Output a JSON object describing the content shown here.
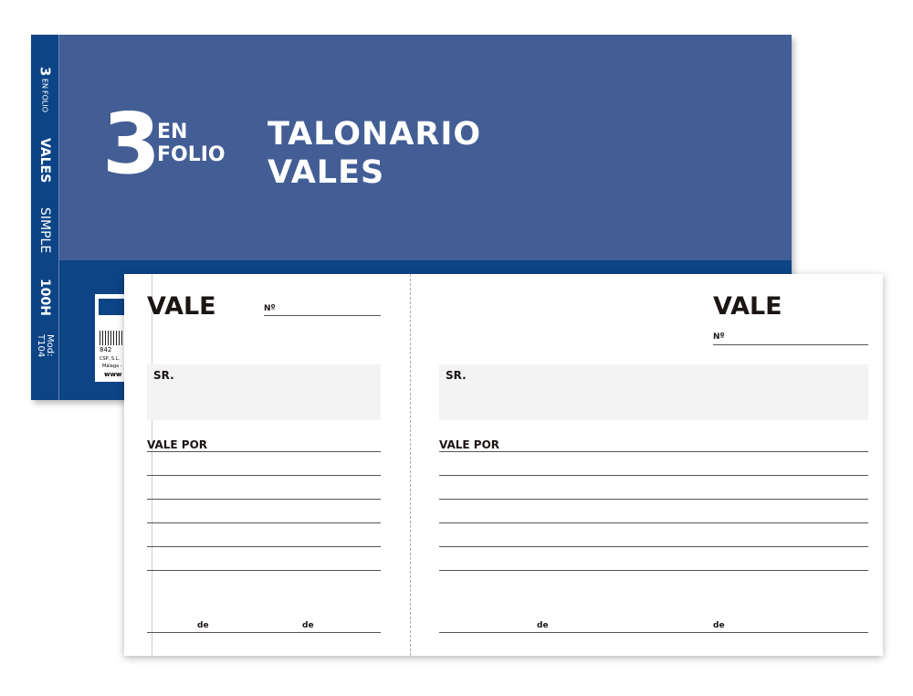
{
  "cover": {
    "number": "3",
    "en": "EN",
    "folio": "FOLIO",
    "title_line1": "TALONARIO",
    "title_line2": "VALES",
    "colors": {
      "cover": "#435e95",
      "band": "#0d4486"
    }
  },
  "spine": {
    "number": "3",
    "en": "EN",
    "folio": "FOLIO",
    "vales": "VALES",
    "simple": "SIMPLE",
    "sheets": "100H",
    "model": "Mod: T104"
  },
  "label": {
    "company": "CSP, S.L.",
    "city": "Málaga -",
    "web": "www",
    "barcode": "842"
  },
  "voucher_left": {
    "title": "VALE",
    "number_label": "Nº",
    "sr_label": "SR.",
    "vale_por_label": "VALE POR",
    "de1": "de",
    "de2": "de"
  },
  "voucher_right": {
    "title": "VALE",
    "number_label": "Nº",
    "sr_label": "SR.",
    "vale_por_label": "VALE POR",
    "de1": "de",
    "de2": "de"
  }
}
